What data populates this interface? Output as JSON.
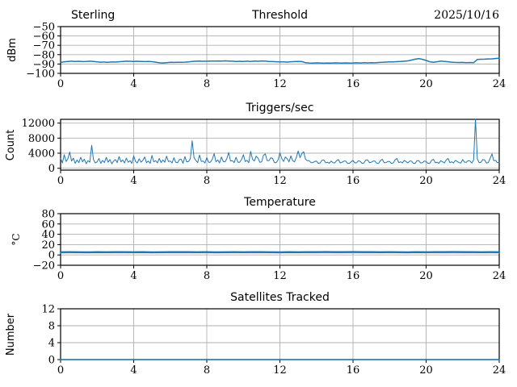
{
  "colors": {
    "background": "#ffffff",
    "grid": "#b0b0b0",
    "spine": "#000000",
    "line_blue": "#1f77b4",
    "line_light_blue": "#9fc5e8"
  },
  "chart_data": [
    {
      "type": "line",
      "title": "Threshold",
      "title_left": "Sterling",
      "title_right": "2025/10/16",
      "ylabel": "dBm",
      "xlabel": "",
      "xlim": [
        0,
        24
      ],
      "ylim": [
        -100,
        -50
      ],
      "xticks": [
        0,
        4,
        8,
        12,
        16,
        20,
        24
      ],
      "yticks": [
        -50,
        -60,
        -70,
        -80,
        -90,
        -100
      ],
      "grid": true,
      "x_start": 0,
      "x_step": 0.2,
      "series": [
        {
          "name": "threshold-dbm",
          "color": "#1f77b4",
          "width": 1.5,
          "values": [
            -88.3,
            -87.6,
            -87.2,
            -87.0,
            -87.3,
            -87.1,
            -87.4,
            -87.2,
            -87.0,
            -87.3,
            -87.8,
            -88.0,
            -87.9,
            -88.1,
            -87.8,
            -87.9,
            -87.6,
            -87.2,
            -87.0,
            -87.1,
            -87.3,
            -87.1,
            -87.2,
            -87.4,
            -87.2,
            -87.5,
            -88.0,
            -88.7,
            -88.9,
            -88.5,
            -88.2,
            -88.3,
            -88.1,
            -88.2,
            -88.0,
            -87.8,
            -87.3,
            -87.0,
            -86.9,
            -87.1,
            -87.0,
            -86.8,
            -86.9,
            -86.7,
            -86.9,
            -86.6,
            -86.8,
            -87.0,
            -87.2,
            -87.1,
            -87.3,
            -87.0,
            -87.2,
            -86.9,
            -87.1,
            -86.7,
            -86.9,
            -87.2,
            -87.4,
            -87.6,
            -87.8,
            -87.7,
            -87.9,
            -87.6,
            -87.4,
            -87.2,
            -87.4,
            -88.6,
            -88.9,
            -89.0,
            -88.8,
            -88.9,
            -89.1,
            -88.9,
            -89.0,
            -88.8,
            -88.9,
            -89.0,
            -88.8,
            -89.0,
            -88.9,
            -88.7,
            -88.9,
            -88.6,
            -88.8,
            -88.5,
            -88.7,
            -88.4,
            -88.2,
            -87.9,
            -87.7,
            -87.8,
            -87.5,
            -87.3,
            -87.0,
            -86.6,
            -85.8,
            -84.8,
            -84.3,
            -85.0,
            -86.2,
            -87.6,
            -88.2,
            -87.6,
            -86.9,
            -87.2,
            -87.6,
            -88.0,
            -88.3,
            -88.4,
            -88.3,
            -88.5,
            -88.4,
            -88.5,
            -85.2,
            -84.9,
            -84.8,
            -84.6,
            -84.5,
            -84.1,
            -83.7
          ]
        }
      ]
    },
    {
      "type": "line",
      "title": "Triggers/sec",
      "ylabel": "Count",
      "xlabel": "",
      "xlim": [
        0,
        24
      ],
      "ylim": [
        -500,
        13000
      ],
      "xticks": [
        0,
        4,
        8,
        12,
        16,
        20,
        24
      ],
      "yticks": [
        0,
        4000,
        8000,
        12000
      ],
      "grid": true,
      "x_start": 0,
      "x_step": 0.1,
      "series": [
        {
          "name": "triggers-per-sec",
          "color": "#1f77b4",
          "width": 1.0,
          "values": [
            2600,
            1400,
            3600,
            1800,
            2500,
            4300,
            1900,
            2700,
            1300,
            2200,
            1500,
            2900,
            1700,
            2400,
            1200,
            2000,
            1600,
            6100,
            2300,
            1400,
            1700,
            2600,
            1300,
            2100,
            1500,
            2900,
            1600,
            2300,
            1200,
            1900,
            2300,
            1500,
            3100,
            1700,
            2200,
            1400,
            2700,
            1600,
            2000,
            1300,
            3300,
            1800,
            1400,
            2500,
            1600,
            2100,
            3000,
            1500,
            1900,
            1300,
            3400,
            1700,
            2000,
            1400,
            2600,
            1500,
            2200,
            1600,
            3200,
            1800,
            1900,
            1400,
            2800,
            1600,
            1500,
            2300,
            2400,
            1300,
            3100,
            1700,
            1800,
            2500,
            7300,
            2800,
            2100,
            1500,
            3500,
            1800,
            1900,
            1400,
            2800,
            1600,
            1600,
            2400,
            3900,
            1700,
            2200,
            1400,
            3000,
            1800,
            1700,
            2600,
            4200,
            1900,
            2000,
            1500,
            2900,
            1600,
            1600,
            2300,
            3600,
            1800,
            2100,
            1500,
            4500,
            2400,
            1900,
            3200,
            2700,
            1600,
            1700,
            3400,
            3800,
            2000,
            2000,
            2800,
            2600,
            1500,
            1500,
            2200,
            4100,
            2600,
            1800,
            3000,
            2500,
            1700,
            3300,
            2000,
            1700,
            2900,
            4600,
            2800,
            3900,
            4400,
            2400,
            2000,
            2000,
            1500,
            1500,
            1800,
            1900,
            1300,
            1400,
            2100,
            2200,
            1500,
            1600,
            1300,
            1900,
            1500,
            1400,
            2000,
            2300,
            1400,
            1600,
            1900,
            1900,
            1300,
            1300,
            1700,
            2100,
            1400,
            1500,
            2000,
            1800,
            1300,
            1400,
            2200,
            2200,
            1500,
            1600,
            1900,
            1900,
            1300,
            1300,
            2000,
            2400,
            1500,
            1500,
            1800,
            1800,
            1300,
            1400,
            2200,
            2600,
            1500,
            1700,
            1400,
            2100,
            1800,
            1400,
            1900,
            1900,
            1300,
            1300,
            2000,
            2000,
            1400,
            1500,
            1900,
            1800,
            1300,
            1300,
            2100,
            2400,
            1500,
            1600,
            1300,
            2000,
            1700,
            1400,
            2200,
            2600,
            1500,
            1700,
            1400,
            2100,
            1800,
            1500,
            1400,
            2300,
            1600,
            1600,
            2000,
            1900,
            1400,
            2200,
            13000,
            2500,
            1500,
            1600,
            2300,
            2200,
            1400,
            1500,
            2600,
            3800,
            2000,
            2100,
            1500,
            1600
          ]
        }
      ]
    },
    {
      "type": "line",
      "title": "Temperature",
      "ylabel": "°C",
      "xlabel": "",
      "xlim": [
        0,
        24
      ],
      "ylim": [
        -20,
        80
      ],
      "xticks": [
        0,
        4,
        8,
        12,
        16,
        20,
        24
      ],
      "yticks": [
        -20,
        0,
        20,
        40,
        60,
        80
      ],
      "grid": true,
      "x_start": 0,
      "x_step": 0.5,
      "series": [
        {
          "name": "temperature-lower",
          "color": "#9fc5e8",
          "width": 1.2,
          "values": [
            4.0,
            3.9,
            4.0,
            4.1,
            4.0,
            3.9,
            4.0,
            4.0,
            4.1,
            4.0,
            3.9,
            4.0,
            4.1,
            4.0,
            4.0,
            3.9,
            4.0,
            4.1,
            4.0,
            3.9,
            4.0,
            4.0,
            4.1,
            4.0,
            3.9,
            4.0,
            4.1,
            4.0,
            4.0,
            3.9,
            4.0,
            4.1,
            4.0,
            3.9,
            4.0,
            4.0,
            4.1,
            4.0,
            3.9,
            4.0,
            4.1,
            4.0,
            3.9,
            4.0,
            4.0,
            4.1,
            4.0,
            3.9,
            4.0
          ]
        },
        {
          "name": "temperature-main",
          "color": "#1f77b4",
          "width": 2.4,
          "values": [
            5.3,
            5.4,
            5.3,
            5.2,
            5.4,
            5.3,
            5.5,
            5.4,
            5.3,
            5.4,
            5.2,
            5.3,
            5.4,
            5.5,
            5.4,
            5.3,
            5.4,
            5.2,
            5.3,
            5.4,
            5.3,
            5.5,
            5.4,
            5.3,
            5.2,
            5.4,
            5.3,
            5.4,
            5.5,
            5.6,
            5.5,
            5.4,
            5.6,
            5.5,
            5.4,
            5.3,
            5.4,
            5.3,
            5.2,
            5.4,
            5.3,
            5.5,
            5.4,
            5.6,
            5.5,
            5.4,
            5.3,
            5.4,
            5.3
          ]
        }
      ]
    },
    {
      "type": "line",
      "title": "Satellites Tracked",
      "ylabel": "Number",
      "xlabel": "",
      "xlim": [
        0,
        24
      ],
      "ylim": [
        0,
        12
      ],
      "xticks": [
        0,
        4,
        8,
        12,
        16,
        20,
        24
      ],
      "yticks": [
        0,
        4,
        8,
        12
      ],
      "grid": true,
      "x_start": 0,
      "x_step": 1,
      "series": [
        {
          "name": "satellites-tracked",
          "color": "#1f77b4",
          "width": 1.5,
          "values": [
            0,
            0,
            0,
            0,
            0,
            0,
            0,
            0,
            0,
            0,
            0,
            0,
            0,
            0,
            0,
            0,
            0,
            0,
            0,
            0,
            0,
            0,
            0,
            0,
            0
          ]
        }
      ]
    }
  ]
}
